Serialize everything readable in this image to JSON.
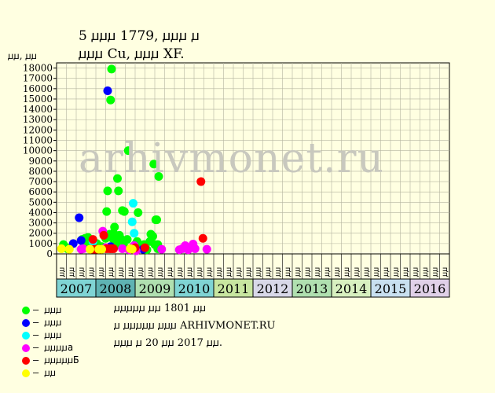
{
  "title_line1": "5 ꙡꙡꙡ 1779, ꙡꙡꙡ ꙡ",
  "title_line2": "ꙡꙡꙡ Cu, ꙡꙡꙡ XF.",
  "y_axis_label": "ꙡꙡ, ꙡꙡ",
  "watermark": "arhivmonet.ru",
  "notes": [
    "ꙡꙡꙡꙡꙡ ꙡꙡ 1801 ꙡꙡ",
    "ꙡ ꙡꙡꙡꙡꙡ ꙡꙡꙡ ARHIVMONET.RU",
    "ꙡꙡꙡ ꙡ 20 ꙡꙡ 2017 ꙡꙡ."
  ],
  "legend": [
    {
      "label": "– ꙡꙡꙡ",
      "color": "#00FF00"
    },
    {
      "label": "– ꙡꙡꙡ",
      "color": "#0000FF"
    },
    {
      "label": "– ꙡꙡꙡ",
      "color": "#00FFFF"
    },
    {
      "label": "– ꙡꙡꙡꙡa",
      "color": "#FF00FF"
    },
    {
      "label": "– ꙡꙡꙡꙡꙡБ",
      "color": "#FF0000"
    },
    {
      "label": "– ꙡꙡ",
      "color": "#FFFF00"
    }
  ],
  "chart_data": {
    "type": "scatter",
    "ylim": [
      0,
      18500
    ],
    "yticks": [
      0,
      1000,
      2000,
      3000,
      4000,
      5000,
      6000,
      7000,
      8000,
      9000,
      10000,
      11000,
      12000,
      13000,
      14000,
      15000,
      16000,
      17000,
      18000
    ],
    "grid": true,
    "quarter_labels": [
      "ꙡꙡ",
      "ꙡꙡ",
      "ꙡꙡ",
      "ꙡꙡ"
    ],
    "years": [
      {
        "label": "2007",
        "color": "#7FD4D4"
      },
      {
        "label": "2008",
        "color": "#5FB3B3"
      },
      {
        "label": "2009",
        "color": "#B0E0B0"
      },
      {
        "label": "2010",
        "color": "#7FD4D4"
      },
      {
        "label": "2011",
        "color": "#C8E6A0"
      },
      {
        "label": "2012",
        "color": "#D8D8E8"
      },
      {
        "label": "2013",
        "color": "#B0E0B0"
      },
      {
        "label": "2014",
        "color": "#D8F0C0"
      },
      {
        "label": "2015",
        "color": "#C8E0F0"
      },
      {
        "label": "2016",
        "color": "#E0D0E8"
      }
    ],
    "series": [
      {
        "name": "ꙡꙡꙡ",
        "color": "#00FF00",
        "points": [
          [
            0.2,
            900
          ],
          [
            0.5,
            600
          ],
          [
            0.6,
            500
          ],
          [
            2.1,
            1400
          ],
          [
            2.4,
            1500
          ],
          [
            2.7,
            1600
          ],
          [
            2.5,
            900
          ],
          [
            2.3,
            700
          ],
          [
            3.4,
            600
          ],
          [
            3.6,
            1000
          ],
          [
            4.1,
            700
          ],
          [
            4.5,
            1500
          ],
          [
            4.6,
            4100
          ],
          [
            4.7,
            6100
          ],
          [
            4.8,
            1700
          ],
          [
            4.9,
            1900
          ],
          [
            5.0,
            14900
          ],
          [
            5.1,
            17900
          ],
          [
            5.1,
            1900
          ],
          [
            5.2,
            1500
          ],
          [
            5.3,
            2000
          ],
          [
            5.4,
            2600
          ],
          [
            5.5,
            800
          ],
          [
            5.6,
            1100
          ],
          [
            5.7,
            7300
          ],
          [
            5.8,
            6100
          ],
          [
            5.9,
            1800
          ],
          [
            6.0,
            1500
          ],
          [
            6.1,
            1400
          ],
          [
            6.2,
            4200
          ],
          [
            6.3,
            1200
          ],
          [
            6.4,
            4100
          ],
          [
            6.5,
            600
          ],
          [
            6.7,
            1400
          ],
          [
            6.8,
            10000
          ],
          [
            7.0,
            500
          ],
          [
            7.3,
            700
          ],
          [
            7.5,
            900
          ],
          [
            7.7,
            1200
          ],
          [
            7.8,
            4000
          ],
          [
            7.9,
            600
          ],
          [
            8.2,
            700
          ],
          [
            8.4,
            900
          ],
          [
            8.7,
            400
          ],
          [
            9.0,
            1200
          ],
          [
            9.1,
            1900
          ],
          [
            9.3,
            1700
          ],
          [
            9.4,
            8700
          ],
          [
            9.5,
            900
          ],
          [
            9.6,
            3300
          ],
          [
            9.7,
            3300
          ],
          [
            9.8,
            900
          ],
          [
            9.9,
            7500
          ],
          [
            9.8,
            500
          ]
        ]
      },
      {
        "name": "ꙡꙡꙡ",
        "color": "#0000FF",
        "points": [
          [
            1.2,
            1000
          ],
          [
            1.8,
            3500
          ],
          [
            2.0,
            1300
          ],
          [
            4.7,
            15800
          ],
          [
            5.0,
            700
          ],
          [
            8.3,
            450
          ]
        ]
      },
      {
        "name": "ꙡꙡꙡ",
        "color": "#00FFFF",
        "points": [
          [
            3.2,
            1200
          ],
          [
            7.3,
            4900
          ],
          [
            7.2,
            3100
          ],
          [
            7.4,
            2000
          ],
          [
            7.1,
            500
          ]
        ]
      },
      {
        "name": "ꙡꙡꙡꙡa",
        "color": "#FF00FF",
        "points": [
          [
            2.0,
            450
          ],
          [
            2.2,
            500
          ],
          [
            4.2,
            2200
          ],
          [
            4.5,
            600
          ],
          [
            6.2,
            500
          ],
          [
            6.9,
            400
          ],
          [
            7.4,
            800
          ],
          [
            7.6,
            300
          ],
          [
            10.2,
            450
          ],
          [
            12.0,
            400
          ],
          [
            12.3,
            500
          ],
          [
            12.6,
            800
          ],
          [
            12.9,
            400
          ],
          [
            13.4,
            950
          ],
          [
            13.6,
            500
          ],
          [
            14.8,
            450
          ]
        ]
      },
      {
        "name": "ꙡꙡꙡꙡꙡБ",
        "color": "#FF0000",
        "points": [
          [
            3.2,
            1400
          ],
          [
            3.0,
            450
          ],
          [
            3.3,
            450
          ],
          [
            3.5,
            450
          ],
          [
            3.7,
            450
          ],
          [
            3.9,
            450
          ],
          [
            4.0,
            450
          ],
          [
            4.3,
            1800
          ],
          [
            4.6,
            500
          ],
          [
            4.9,
            500
          ],
          [
            5.1,
            500
          ],
          [
            5.3,
            500
          ],
          [
            7.5,
            600
          ],
          [
            8.5,
            600
          ],
          [
            14.2,
            7000
          ],
          [
            14.4,
            1500
          ]
        ]
      },
      {
        "name": "ꙡꙡ",
        "color": "#FFFF00",
        "points": [
          [
            0.0,
            500
          ],
          [
            0.8,
            450
          ],
          [
            2.9,
            450
          ],
          [
            3.8,
            450
          ],
          [
            4.1,
            450
          ],
          [
            7.0,
            500
          ],
          [
            7.2,
            450
          ]
        ]
      }
    ]
  }
}
